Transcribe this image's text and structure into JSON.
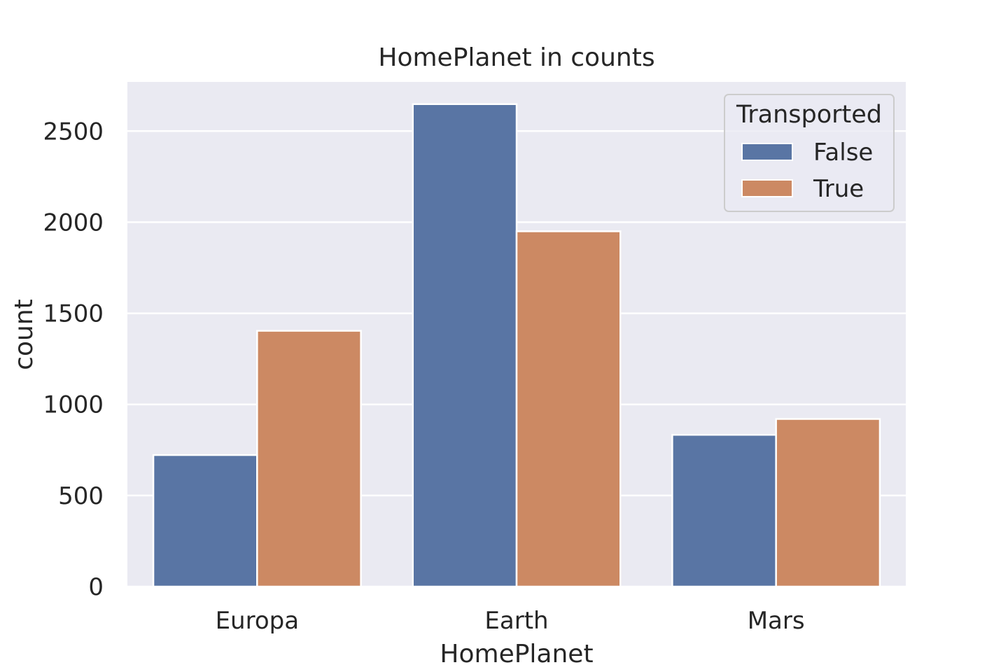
{
  "chart_data": {
    "type": "bar",
    "title": "HomePlanet in counts",
    "xlabel": "HomePlanet",
    "ylabel": "count",
    "categories": [
      "Europa",
      "Earth",
      "Mars"
    ],
    "series": [
      {
        "name": "False",
        "values": [
          722,
          2648,
          833
        ],
        "color": "#5975a4"
      },
      {
        "name": "True",
        "values": [
          1404,
          1950,
          920
        ],
        "color": "#cc8963"
      }
    ],
    "yticks": [
      0,
      500,
      1000,
      1500,
      2000,
      2500
    ],
    "ylim": [
      0,
      2770
    ],
    "grid": true,
    "legend": {
      "title": "Transported",
      "position": "top-right"
    },
    "colors": {
      "background": "#eaeaf2",
      "grid": "#ffffff",
      "text": "#262626"
    }
  }
}
